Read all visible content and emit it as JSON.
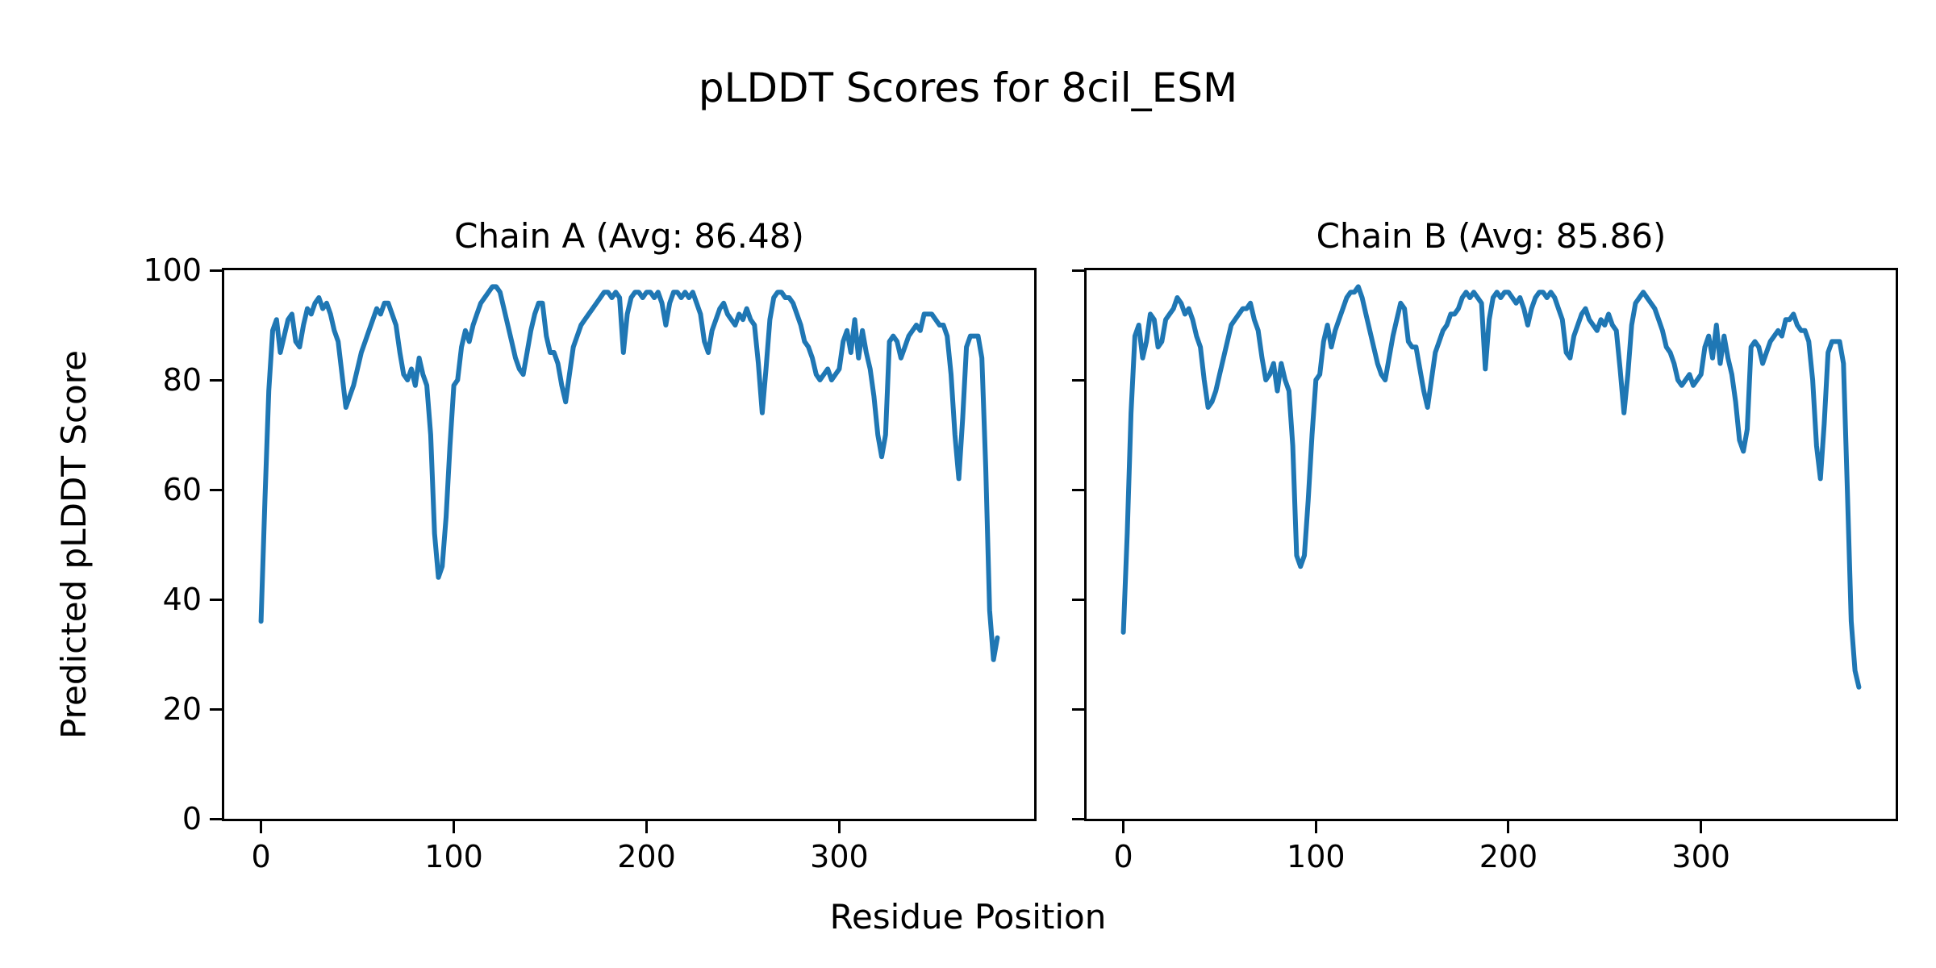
{
  "figure": {
    "background_color": "#ffffff",
    "text_color": "#000000",
    "spine_color": "#000000"
  },
  "chart_data": {
    "type": "line",
    "title": "pLDDT Scores for 8cil_ESM",
    "xlabel": "Residue Position",
    "ylabel": "Predicted pLDDT Score",
    "grid": false,
    "legend": "none",
    "xlim": [
      -19.1,
      401.1
    ],
    "ylim": [
      0,
      100
    ],
    "x_ticks": [
      0,
      100,
      200,
      300
    ],
    "y_ticks": [
      0,
      20,
      40,
      60,
      80,
      100
    ],
    "x_start": 0,
    "x_step": 2,
    "series": [
      {
        "name": "Chain A",
        "subplot_title": "Chain A (Avg: 86.48)",
        "avg": 86.48,
        "color": "#1f77b4",
        "values": [
          36,
          58,
          78,
          89,
          91,
          85,
          88,
          91,
          92,
          87,
          86,
          90,
          93,
          92,
          94,
          95,
          93,
          94,
          92,
          89,
          87,
          81,
          75,
          77,
          79,
          82,
          85,
          87,
          89,
          91,
          93,
          92,
          94,
          94,
          92,
          90,
          85,
          81,
          80,
          82,
          79,
          84,
          81,
          79,
          70,
          52,
          44,
          46,
          55,
          68,
          79,
          80,
          86,
          89,
          87,
          90,
          92,
          94,
          95,
          96,
          97,
          97,
          96,
          93,
          90,
          87,
          84,
          82,
          81,
          85,
          89,
          92,
          94,
          94,
          88,
          85,
          85,
          83,
          79,
          76,
          81,
          86,
          88,
          90,
          91,
          92,
          93,
          94,
          95,
          96,
          96,
          95,
          96,
          95,
          85,
          92,
          95,
          96,
          96,
          95,
          96,
          96,
          95,
          96,
          94,
          90,
          94,
          96,
          96,
          95,
          96,
          95,
          96,
          94,
          92,
          87,
          85,
          89,
          91,
          93,
          94,
          92,
          91,
          90,
          92,
          91,
          93,
          91,
          90,
          83,
          74,
          82,
          91,
          95,
          96,
          96,
          95,
          95,
          94,
          92,
          90,
          87,
          86,
          84,
          81,
          80,
          81,
          82,
          80,
          81,
          82,
          87,
          89,
          85,
          91,
          84,
          89,
          85,
          82,
          77,
          70,
          66,
          70,
          87,
          88,
          87,
          84,
          86,
          88,
          89,
          90,
          89,
          92,
          92,
          92,
          91,
          90,
          90,
          88,
          81,
          70,
          62,
          73,
          86,
          88,
          88,
          88,
          84,
          64,
          38,
          29,
          33
        ]
      },
      {
        "name": "Chain B",
        "subplot_title": "Chain B (Avg: 85.86)",
        "avg": 85.86,
        "color": "#1f77b4",
        "values": [
          34,
          52,
          74,
          88,
          90,
          84,
          87,
          92,
          91,
          86,
          87,
          91,
          92,
          93,
          95,
          94,
          92,
          93,
          91,
          88,
          86,
          80,
          75,
          76,
          78,
          81,
          84,
          87,
          90,
          91,
          92,
          93,
          93,
          94,
          91,
          89,
          84,
          80,
          81,
          83,
          78,
          83,
          80,
          78,
          68,
          48,
          46,
          48,
          58,
          70,
          80,
          81,
          87,
          90,
          86,
          89,
          91,
          93,
          95,
          96,
          96,
          97,
          95,
          92,
          89,
          86,
          83,
          81,
          80,
          84,
          88,
          91,
          94,
          93,
          87,
          86,
          86,
          82,
          78,
          75,
          80,
          85,
          87,
          89,
          90,
          92,
          92,
          93,
          95,
          96,
          95,
          96,
          95,
          94,
          82,
          91,
          95,
          96,
          95,
          96,
          96,
          95,
          94,
          95,
          93,
          90,
          93,
          95,
          96,
          96,
          95,
          96,
          95,
          93,
          91,
          85,
          84,
          88,
          90,
          92,
          93,
          91,
          90,
          89,
          91,
          90,
          92,
          90,
          89,
          82,
          74,
          81,
          90,
          94,
          95,
          96,
          95,
          94,
          93,
          91,
          89,
          86,
          85,
          83,
          80,
          79,
          80,
          81,
          79,
          80,
          81,
          86,
          88,
          84,
          90,
          83,
          88,
          84,
          81,
          76,
          69,
          67,
          71,
          86,
          87,
          86,
          83,
          85,
          87,
          88,
          89,
          88,
          91,
          91,
          92,
          90,
          89,
          89,
          87,
          80,
          68,
          62,
          72,
          85,
          87,
          87,
          87,
          83,
          60,
          36,
          27,
          24
        ]
      }
    ]
  }
}
